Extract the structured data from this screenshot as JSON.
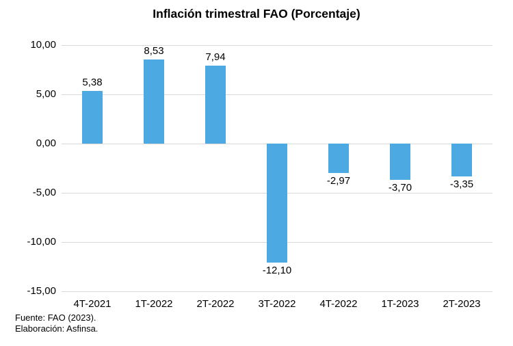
{
  "chart_data": {
    "type": "bar",
    "title": "Inflación trimestral FAO (Porcentaje)",
    "categories": [
      "4T-2021",
      "1T-2022",
      "2T-2022",
      "3T-2022",
      "4T-2022",
      "1T-2023",
      "2T-2023"
    ],
    "values": [
      5.38,
      8.53,
      7.94,
      -12.1,
      -2.97,
      -3.7,
      -3.35
    ],
    "value_labels": [
      "5,38",
      "8,53",
      "7,94",
      "-12,10",
      "-2,97",
      "-3,70",
      "-3,35"
    ],
    "xlabel": "",
    "ylabel": "",
    "ylim": [
      -15,
      10
    ],
    "y_ticks": [
      {
        "value": 10,
        "label": "10,00"
      },
      {
        "value": 5,
        "label": "5,00"
      },
      {
        "value": 0,
        "label": "0,00"
      },
      {
        "value": -5,
        "label": "-5,00"
      },
      {
        "value": -10,
        "label": "-10,00"
      },
      {
        "value": -15,
        "label": "-15,00"
      }
    ],
    "grid": true,
    "legend": false,
    "bar_color": "#4DA9E2",
    "gridline_color": "#D9D9D9",
    "text_color": "#000000"
  },
  "footer": {
    "source": "Fuente: FAO (2023).",
    "elaboration": "Elaboración: Asfinsa."
  }
}
